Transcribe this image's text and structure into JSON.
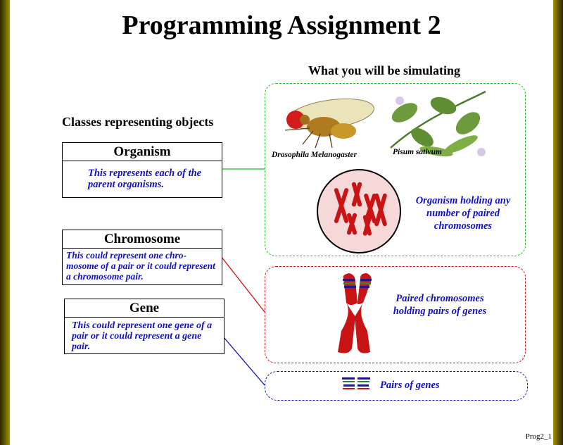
{
  "title": "Programming Assignment 2",
  "left_heading": "Classes representing objects",
  "right_heading": "What you will be simulating",
  "classes": [
    {
      "name": "Organism",
      "description": "This represents each of the parent organisms."
    },
    {
      "name": "Chromosome",
      "description": "This could represent one chro- mosome of a pair or it could represent a chromosome pair."
    },
    {
      "name": "Gene",
      "description": "This could represent one gene of a pair or it could represent a gene pair."
    }
  ],
  "captions": {
    "fly": "Drosophila Melanogaster",
    "pea": "Pisum sativum"
  },
  "labels": {
    "organism": "Organism holding any number of paired chromosomes",
    "paired": "Paired chromosomes holding pairs of genes",
    "genes": "Pairs of genes"
  },
  "colors": {
    "organism_link": "#22bb22",
    "chromosome_link": "#d01010",
    "gene_link": "#1010c8",
    "description_text": "#1010c8",
    "chromosome_fill": "#c81414"
  },
  "footer": "Prog2_1"
}
